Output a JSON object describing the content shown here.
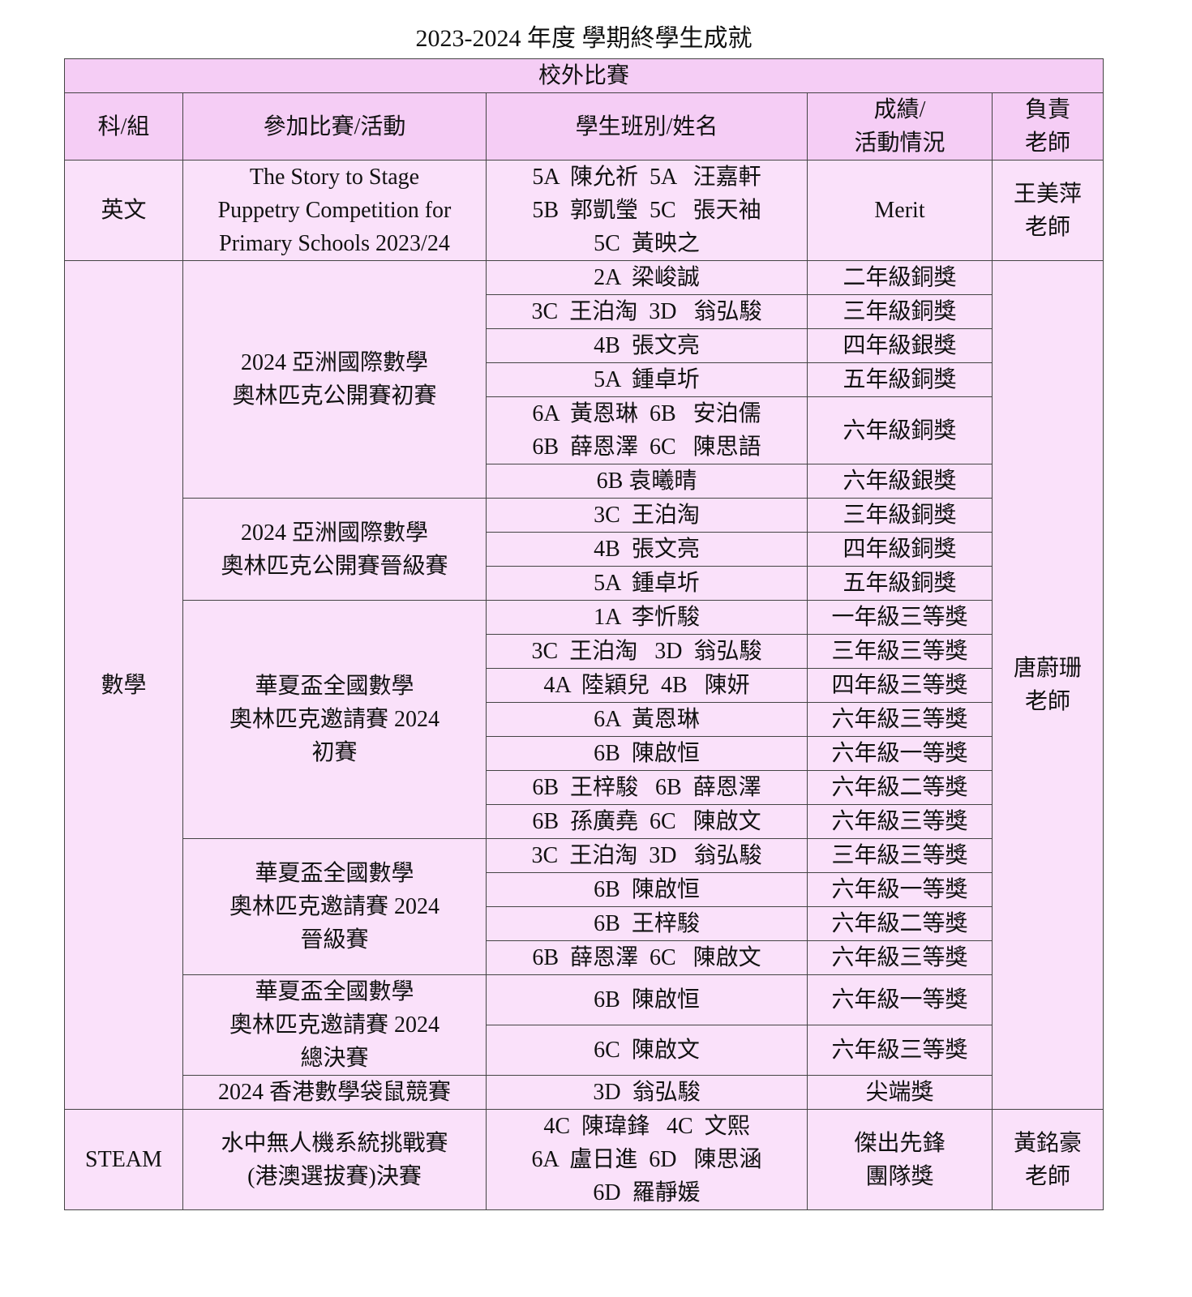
{
  "title": "2023-2024 年度 學期終學生成就",
  "section": "校外比賽",
  "headers": [
    "科/組",
    "參加比賽/活動",
    "學生班別/姓名",
    "成績/\n活動情況",
    "負責\n老師"
  ],
  "colors": {
    "header_bg": "#f5cdf5",
    "cell_bg": "#fae1fa",
    "border": "#444444"
  },
  "subjects": [
    {
      "subject": "英文",
      "teacher": "王美萍\n老師",
      "competitions": [
        {
          "name": "The Story to Stage\nPuppetry Competition for\nPrimary Schools 2023/24",
          "entries": [
            {
              "students": "5A  陳允祈  5A   汪嘉軒\n5B  郭凱瑩  5C   張天袖\n5C  黃映之",
              "result": "Merit"
            }
          ]
        }
      ]
    },
    {
      "subject": "數學",
      "teacher": "唐蔚珊\n老師",
      "competitions": [
        {
          "name": "2024 亞洲國際數學\n奧林匹克公開賽初賽",
          "entries": [
            {
              "students": "2A  梁峻誠",
              "result": "二年級銅獎"
            },
            {
              "students": "3C  王泊淘  3D   翁弘駿",
              "result": "三年級銅獎"
            },
            {
              "students": "4B  張文亮",
              "result": "四年級銀獎"
            },
            {
              "students": "5A  鍾卓圻",
              "result": "五年級銅獎"
            },
            {
              "students": "6A  黃恩琳  6B   安泊儒\n6B  薛恩澤  6C   陳思語",
              "result": "六年級銅獎"
            },
            {
              "students": "6B 袁曦晴",
              "result": "六年級銀獎"
            }
          ]
        },
        {
          "name": "2024 亞洲國際數學\n奧林匹克公開賽晉級賽",
          "entries": [
            {
              "students": "3C  王泊淘",
              "result": "三年級銅獎"
            },
            {
              "students": "4B  張文亮",
              "result": "四年級銅獎"
            },
            {
              "students": "5A  鍾卓圻",
              "result": "五年級銅獎"
            }
          ]
        },
        {
          "name": "華夏盃全國數學\n奧林匹克邀請賽 2024\n初賽",
          "entries": [
            {
              "students": "1A  李忻駿",
              "result": "一年級三等獎"
            },
            {
              "students": "3C  王泊淘   3D  翁弘駿",
              "result": "三年級三等獎"
            },
            {
              "students": "4A  陸穎兒  4B   陳妍",
              "result": "四年級三等獎"
            },
            {
              "students": "6A  黃恩琳",
              "result": "六年級三等獎"
            },
            {
              "students": "6B  陳啟恒",
              "result": "六年級一等獎"
            },
            {
              "students": "6B  王梓駿   6B  薛恩澤",
              "result": "六年級二等獎"
            },
            {
              "students": "6B  孫廣堯  6C   陳啟文",
              "result": "六年級三等獎"
            }
          ]
        },
        {
          "name": "華夏盃全國數學\n奧林匹克邀請賽 2024\n晉級賽",
          "entries": [
            {
              "students": "3C  王泊淘  3D   翁弘駿",
              "result": "三年級三等獎"
            },
            {
              "students": "6B  陳啟恒",
              "result": "六年級一等獎"
            },
            {
              "students": "6B  王梓駿",
              "result": "六年級二等獎"
            },
            {
              "students": "6B  薛恩澤  6C   陳啟文",
              "result": "六年級三等獎"
            }
          ]
        },
        {
          "name": "華夏盃全國數學\n奧林匹克邀請賽 2024\n總決賽",
          "entries": [
            {
              "students": "6B  陳啟恒",
              "result": "六年級一等獎"
            },
            {
              "students": "6C  陳啟文",
              "result": "六年級三等獎"
            }
          ]
        },
        {
          "name": "2024 香港數學袋鼠競賽",
          "entries": [
            {
              "students": "3D  翁弘駿",
              "result": "尖端獎"
            }
          ]
        }
      ]
    },
    {
      "subject": "STEAM",
      "teacher": "黃銘豪\n老師",
      "competitions": [
        {
          "name": "水中無人機系統挑戰賽\n(港澳選拔賽)決賽",
          "entries": [
            {
              "students": "4C  陳瑋鋒   4C  文熙\n6A  盧日進  6D   陳思涵\n6D  羅靜媛",
              "result": "傑出先鋒\n團隊獎"
            }
          ]
        }
      ]
    }
  ]
}
